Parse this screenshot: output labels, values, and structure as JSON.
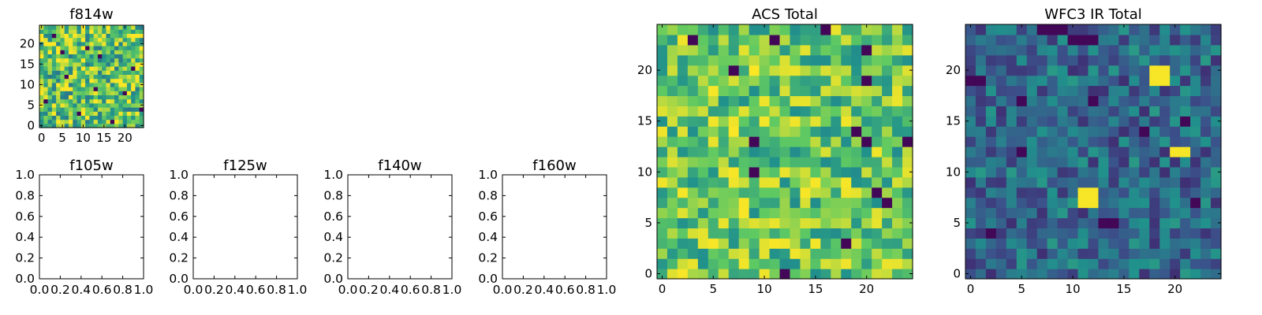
{
  "figure": {
    "background": "#ffffff",
    "axis_color": "#000000"
  },
  "colormap": {
    "name": "viridis",
    "stops": [
      "#440154",
      "#3b528b",
      "#21918c",
      "#5ec962",
      "#fde725"
    ]
  },
  "chart_data": [
    {
      "id": "f814w",
      "type": "heatmap",
      "title": "f814w",
      "grid_size": 25,
      "xlim": [
        -0.5,
        24.5
      ],
      "ylim": [
        -0.5,
        24.5
      ],
      "xticks": [
        0,
        5,
        10,
        15,
        20
      ],
      "yticks": [
        0,
        5,
        10,
        15,
        20
      ],
      "xticklabels": [
        "0",
        "5",
        "10",
        "15",
        "20"
      ],
      "yticklabels": [
        "0",
        "5",
        "10",
        "15",
        "20"
      ],
      "value_range": [
        0,
        1
      ],
      "seed": 11,
      "base": 0.72,
      "noise": 0.32,
      "low_pixels": [
        [
          3,
          22
        ],
        [
          9,
          3
        ],
        [
          14,
          17
        ],
        [
          20,
          8
        ],
        [
          6,
          12
        ],
        [
          17,
          1
        ],
        [
          22,
          14
        ],
        [
          11,
          19
        ],
        [
          1,
          6
        ],
        [
          24,
          4
        ],
        [
          13,
          9
        ],
        [
          5,
          18
        ]
      ],
      "bright_blobs": []
    },
    {
      "id": "f105w",
      "type": "empty",
      "title": "f105w",
      "xlim": [
        0.0,
        1.0
      ],
      "ylim": [
        0.0,
        1.0
      ],
      "xticklabels": [
        "0.0",
        "0.2",
        "0.4",
        "0.6",
        "0.8",
        "1.0"
      ],
      "yticklabels": [
        "0.0",
        "0.2",
        "0.4",
        "0.6",
        "0.8",
        "1.0"
      ]
    },
    {
      "id": "f125w",
      "type": "empty",
      "title": "f125w",
      "xlim": [
        0.0,
        1.0
      ],
      "ylim": [
        0.0,
        1.0
      ],
      "xticklabels": [
        "0.0",
        "0.2",
        "0.4",
        "0.6",
        "0.8",
        "1.0"
      ],
      "yticklabels": [
        "0.0",
        "0.2",
        "0.4",
        "0.6",
        "0.8",
        "1.0"
      ]
    },
    {
      "id": "f140w",
      "type": "empty",
      "title": "f140w",
      "xlim": [
        0.0,
        1.0
      ],
      "ylim": [
        0.0,
        1.0
      ],
      "xticklabels": [
        "0.0",
        "0.2",
        "0.4",
        "0.6",
        "0.8",
        "1.0"
      ],
      "yticklabels": [
        "0.0",
        "0.2",
        "0.4",
        "0.6",
        "0.8",
        "1.0"
      ]
    },
    {
      "id": "f160w",
      "type": "empty",
      "title": "f160w",
      "xlim": [
        0.0,
        1.0
      ],
      "ylim": [
        0.0,
        1.0
      ],
      "xticklabels": [
        "0.0",
        "0.2",
        "0.4",
        "0.6",
        "0.8",
        "1.0"
      ],
      "yticklabels": [
        "0.0",
        "0.2",
        "0.4",
        "0.6",
        "0.8",
        "1.0"
      ]
    },
    {
      "id": "acs-total",
      "type": "heatmap",
      "title": "ACS Total",
      "grid_size": 25,
      "xlim": [
        -0.5,
        24.5
      ],
      "ylim": [
        -0.5,
        24.5
      ],
      "xticks": [
        0,
        5,
        10,
        15,
        20
      ],
      "yticks": [
        0,
        5,
        10,
        15,
        20
      ],
      "xticklabels": [
        "0",
        "5",
        "10",
        "15",
        "20"
      ],
      "yticklabels": [
        "0",
        "5",
        "10",
        "15",
        "20"
      ],
      "value_range": [
        0,
        1
      ],
      "seed": 29,
      "base": 0.74,
      "noise": 0.26,
      "low_pixels": [
        [
          3,
          23
        ],
        [
          16,
          24
        ],
        [
          20,
          22
        ],
        [
          20,
          19
        ],
        [
          9,
          13
        ],
        [
          24,
          13
        ],
        [
          19,
          14
        ],
        [
          20,
          13
        ],
        [
          9,
          10
        ],
        [
          21,
          8
        ],
        [
          22,
          7
        ],
        [
          18,
          3
        ],
        [
          12,
          0
        ],
        [
          11,
          23
        ],
        [
          7,
          20
        ]
      ],
      "bright_blobs": [
        [
          8,
          7
        ],
        [
          8,
          6
        ],
        [
          14,
          8
        ],
        [
          15,
          9
        ],
        [
          5,
          3
        ],
        [
          11,
          3
        ],
        [
          2,
          0
        ]
      ]
    },
    {
      "id": "wfc3-ir-total",
      "type": "heatmap",
      "title": "WFC3 IR Total",
      "grid_size": 25,
      "xlim": [
        -0.5,
        24.5
      ],
      "ylim": [
        -0.5,
        24.5
      ],
      "xticks": [
        0,
        5,
        10,
        15,
        20
      ],
      "yticks": [
        0,
        5,
        10,
        15,
        20
      ],
      "xticklabels": [
        "0",
        "5",
        "10",
        "15",
        "20"
      ],
      "yticklabels": [
        "0",
        "5",
        "10",
        "15",
        "20"
      ],
      "value_range": [
        0,
        1
      ],
      "seed": 47,
      "base": 0.34,
      "noise": 0.2,
      "low_pixels": [
        [
          7,
          24
        ],
        [
          8,
          24
        ],
        [
          9,
          24
        ],
        [
          10,
          23
        ],
        [
          11,
          23
        ],
        [
          12,
          23
        ],
        [
          0,
          19
        ],
        [
          1,
          19
        ],
        [
          5,
          17
        ],
        [
          12,
          17
        ],
        [
          21,
          15
        ],
        [
          5,
          12
        ],
        [
          17,
          14
        ],
        [
          2,
          4
        ],
        [
          13,
          5
        ],
        [
          14,
          5
        ],
        [
          22,
          7
        ]
      ],
      "bright_blobs": [
        [
          18,
          20
        ],
        [
          19,
          20
        ],
        [
          18,
          19
        ],
        [
          19,
          19
        ],
        [
          20,
          12
        ],
        [
          21,
          12
        ],
        [
          11,
          8
        ],
        [
          12,
          8
        ],
        [
          11,
          7
        ],
        [
          12,
          7
        ]
      ]
    }
  ]
}
